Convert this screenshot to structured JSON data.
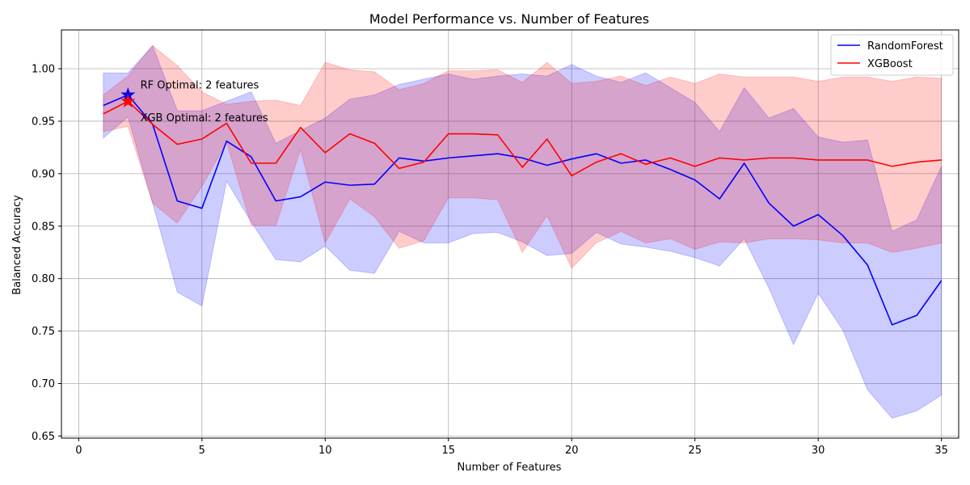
{
  "chart_data": {
    "type": "line",
    "title": "Model Performance vs. Number of Features",
    "xlabel": "Number of Features",
    "ylabel": "Balanced Accuracy",
    "xlim": [
      -0.7,
      35.7
    ],
    "ylim": [
      0.648,
      1.037
    ],
    "xticks": [
      0,
      5,
      10,
      15,
      20,
      25,
      30,
      35
    ],
    "yticks": [
      0.65,
      0.7,
      0.75,
      0.8,
      0.85,
      0.9,
      0.95,
      1.0
    ],
    "ytick_labels": [
      "0.65",
      "0.70",
      "0.75",
      "0.80",
      "0.85",
      "0.90",
      "0.95",
      "1.00"
    ],
    "grid": true,
    "legend_position": "top-right",
    "x": [
      1,
      2,
      3,
      4,
      5,
      6,
      7,
      8,
      9,
      10,
      11,
      12,
      13,
      14,
      15,
      16,
      17,
      18,
      19,
      20,
      21,
      22,
      23,
      24,
      25,
      26,
      27,
      28,
      29,
      30,
      31,
      32,
      33,
      34,
      35
    ],
    "series": [
      {
        "name": "RandomForest",
        "color": "#0000ff",
        "band_color": "#0000ff",
        "values": [
          0.965,
          0.975,
          0.947,
          0.874,
          0.867,
          0.931,
          0.916,
          0.874,
          0.878,
          0.892,
          0.889,
          0.89,
          0.915,
          0.912,
          0.915,
          0.917,
          0.919,
          0.915,
          0.908,
          0.914,
          0.919,
          0.91,
          0.913,
          0.904,
          0.894,
          0.876,
          0.91,
          0.872,
          0.85,
          0.861,
          0.841,
          0.813,
          0.756,
          0.765,
          0.798
        ],
        "upper": [
          0.996,
          0.996,
          1.022,
          0.96,
          0.96,
          0.969,
          0.978,
          0.929,
          0.941,
          0.953,
          0.971,
          0.975,
          0.985,
          0.99,
          0.995,
          0.99,
          0.993,
          0.995,
          0.993,
          1.004,
          0.993,
          0.987,
          0.996,
          0.982,
          0.968,
          0.94,
          0.982,
          0.953,
          0.962,
          0.935,
          0.93,
          0.932,
          0.845,
          0.856,
          0.907
        ],
        "lower": [
          0.934,
          0.954,
          0.872,
          0.787,
          0.774,
          0.893,
          0.854,
          0.818,
          0.816,
          0.831,
          0.808,
          0.805,
          0.845,
          0.834,
          0.834,
          0.843,
          0.844,
          0.835,
          0.822,
          0.824,
          0.844,
          0.833,
          0.83,
          0.826,
          0.82,
          0.812,
          0.838,
          0.791,
          0.737,
          0.786,
          0.751,
          0.694,
          0.667,
          0.674,
          0.689
        ]
      },
      {
        "name": "XGBoost",
        "color": "#ff0000",
        "band_color": "#ff0000",
        "values": [
          0.957,
          0.969,
          0.947,
          0.928,
          0.933,
          0.948,
          0.91,
          0.91,
          0.944,
          0.92,
          0.938,
          0.929,
          0.905,
          0.911,
          0.938,
          0.938,
          0.937,
          0.906,
          0.933,
          0.898,
          0.911,
          0.919,
          0.909,
          0.915,
          0.907,
          0.915,
          0.913,
          0.915,
          0.915,
          0.913,
          0.913,
          0.913,
          0.907,
          0.911,
          0.913
        ],
        "upper": [
          0.975,
          0.993,
          1.022,
          1.003,
          0.978,
          0.966,
          0.969,
          0.97,
          0.965,
          1.006,
          0.999,
          0.997,
          0.98,
          0.986,
          0.998,
          0.998,
          0.999,
          0.987,
          1.006,
          0.986,
          0.988,
          0.993,
          0.984,
          0.992,
          0.986,
          0.995,
          0.992,
          0.992,
          0.992,
          0.988,
          0.992,
          0.992,
          0.988,
          0.992,
          0.991
        ],
        "lower": [
          0.94,
          0.945,
          0.872,
          0.853,
          0.888,
          0.93,
          0.851,
          0.851,
          0.923,
          0.834,
          0.876,
          0.859,
          0.829,
          0.836,
          0.877,
          0.877,
          0.875,
          0.825,
          0.86,
          0.81,
          0.834,
          0.845,
          0.834,
          0.838,
          0.828,
          0.835,
          0.834,
          0.838,
          0.838,
          0.837,
          0.834,
          0.834,
          0.825,
          0.829,
          0.834
        ]
      }
    ],
    "markers": [
      {
        "series": "RandomForest",
        "x": 2,
        "y": 0.975,
        "symbol": "star",
        "label": "RF Optimal: 2 features",
        "label_x": 2.5,
        "label_y": 0.985
      },
      {
        "series": "XGBoost",
        "x": 2,
        "y": 0.969,
        "symbol": "star",
        "label": "XGB Optimal: 2 features",
        "label_x": 2.5,
        "label_y": 0.954
      }
    ]
  }
}
